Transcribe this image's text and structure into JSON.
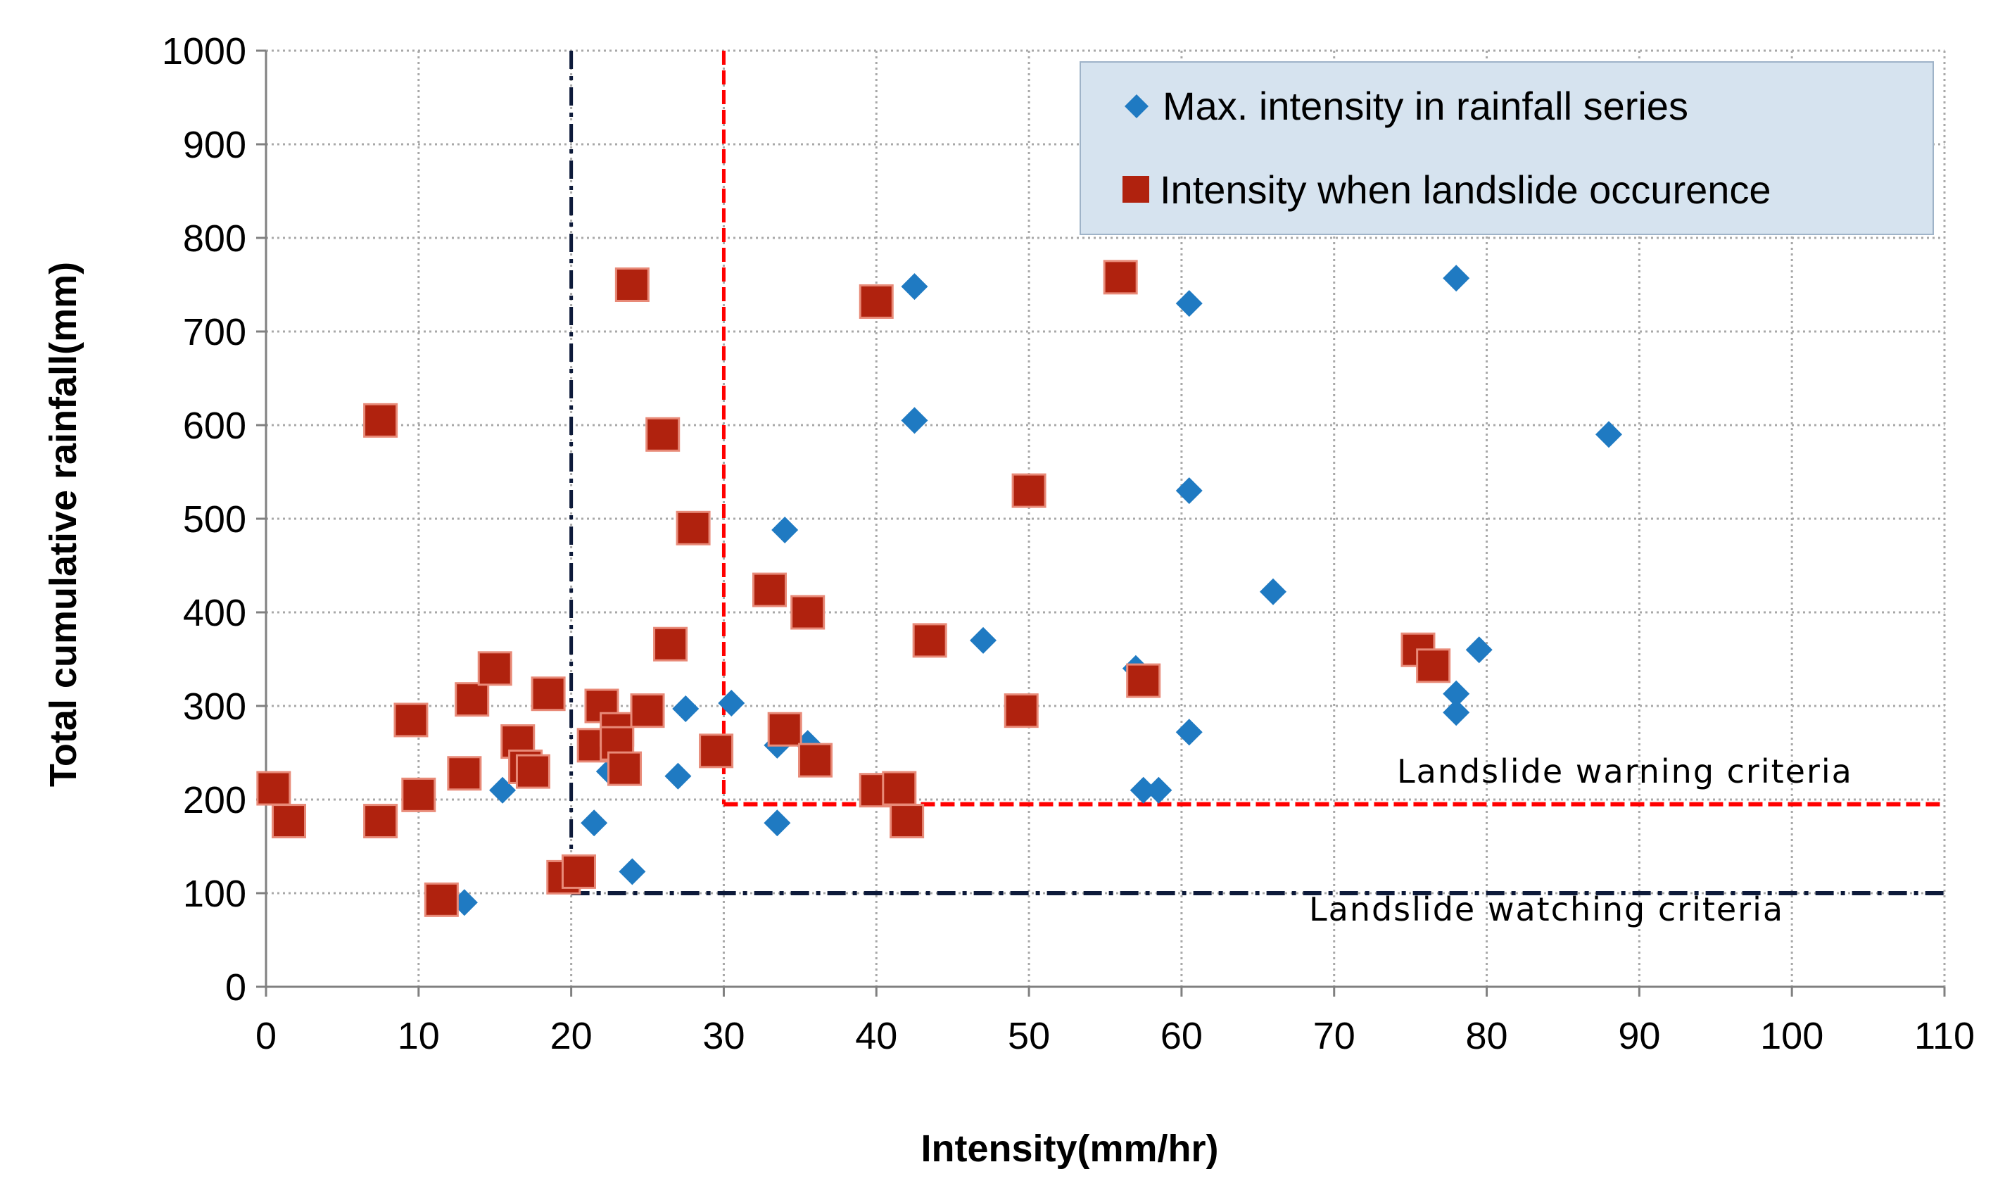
{
  "chart_data": {
    "type": "scatter",
    "title": "",
    "xlabel": "Intensity(mm/hr)",
    "ylabel": "Total cumulative rainfall(mm)",
    "xlim": [
      0,
      110
    ],
    "ylim": [
      0,
      1000
    ],
    "xticks": [
      0,
      10,
      20,
      30,
      40,
      50,
      60,
      70,
      80,
      90,
      100,
      110
    ],
    "yticks": [
      0,
      100,
      200,
      300,
      400,
      500,
      600,
      700,
      800,
      900,
      1000
    ],
    "grid": true,
    "legend_position": "top-right",
    "series": [
      {
        "name": "Max. intensity in rainfall series",
        "marker": "diamond",
        "color": "#1f7ac2",
        "points": [
          [
            13,
            90
          ],
          [
            15.5,
            210
          ],
          [
            21.5,
            175
          ],
          [
            22.5,
            230
          ],
          [
            23,
            250
          ],
          [
            24,
            123
          ],
          [
            27,
            225
          ],
          [
            27.5,
            297
          ],
          [
            30.5,
            303
          ],
          [
            33.5,
            175
          ],
          [
            33.5,
            258
          ],
          [
            34,
            488
          ],
          [
            35.5,
            260
          ],
          [
            42.5,
            748
          ],
          [
            42.5,
            605
          ],
          [
            47,
            370
          ],
          [
            57,
            340
          ],
          [
            57.5,
            210
          ],
          [
            58.5,
            210
          ],
          [
            60.5,
            730
          ],
          [
            60.5,
            530
          ],
          [
            60.5,
            272
          ],
          [
            66,
            422
          ],
          [
            78,
            757
          ],
          [
            78,
            313
          ],
          [
            78,
            293
          ],
          [
            79.5,
            360
          ],
          [
            88,
            590
          ]
        ]
      },
      {
        "name": "Intensity when  landslide occurence",
        "marker": "square",
        "color": "#b0220e",
        "points": [
          [
            0.5,
            212
          ],
          [
            1.5,
            177
          ],
          [
            7.5,
            605
          ],
          [
            7.5,
            177
          ],
          [
            9.5,
            285
          ],
          [
            10,
            205
          ],
          [
            11.5,
            93
          ],
          [
            13,
            228
          ],
          [
            13.5,
            307
          ],
          [
            15,
            340
          ],
          [
            16.5,
            262
          ],
          [
            17,
            235
          ],
          [
            17.5,
            230
          ],
          [
            18.5,
            313
          ],
          [
            19.5,
            117
          ],
          [
            20.5,
            123
          ],
          [
            21.5,
            258
          ],
          [
            22,
            300
          ],
          [
            23,
            275
          ],
          [
            23,
            260
          ],
          [
            23.5,
            233
          ],
          [
            24,
            750
          ],
          [
            25,
            295
          ],
          [
            26,
            590
          ],
          [
            26.5,
            366
          ],
          [
            28,
            490
          ],
          [
            29.5,
            252
          ],
          [
            33,
            424
          ],
          [
            34,
            275
          ],
          [
            35.5,
            400
          ],
          [
            36,
            242
          ],
          [
            40,
            732
          ],
          [
            40,
            210
          ],
          [
            41.5,
            212
          ],
          [
            42,
            177
          ],
          [
            43.5,
            370
          ],
          [
            49.5,
            295
          ],
          [
            50,
            530
          ],
          [
            56,
            758
          ],
          [
            57.5,
            327
          ],
          [
            75.5,
            360
          ],
          [
            76.5,
            343
          ]
        ]
      }
    ],
    "threshold_lines": [
      {
        "name": "Landslide warning criteria",
        "color": "#ff0000",
        "style": "dashed",
        "x_start": 30,
        "y": 195
      },
      {
        "name": "Landslide watching criteria",
        "color": "#0d1a3a",
        "style": "dashdot",
        "x_start": 20,
        "y": 100
      }
    ],
    "annotations": [
      "Landslide warning criteria",
      "Landslide watching criteria"
    ]
  }
}
